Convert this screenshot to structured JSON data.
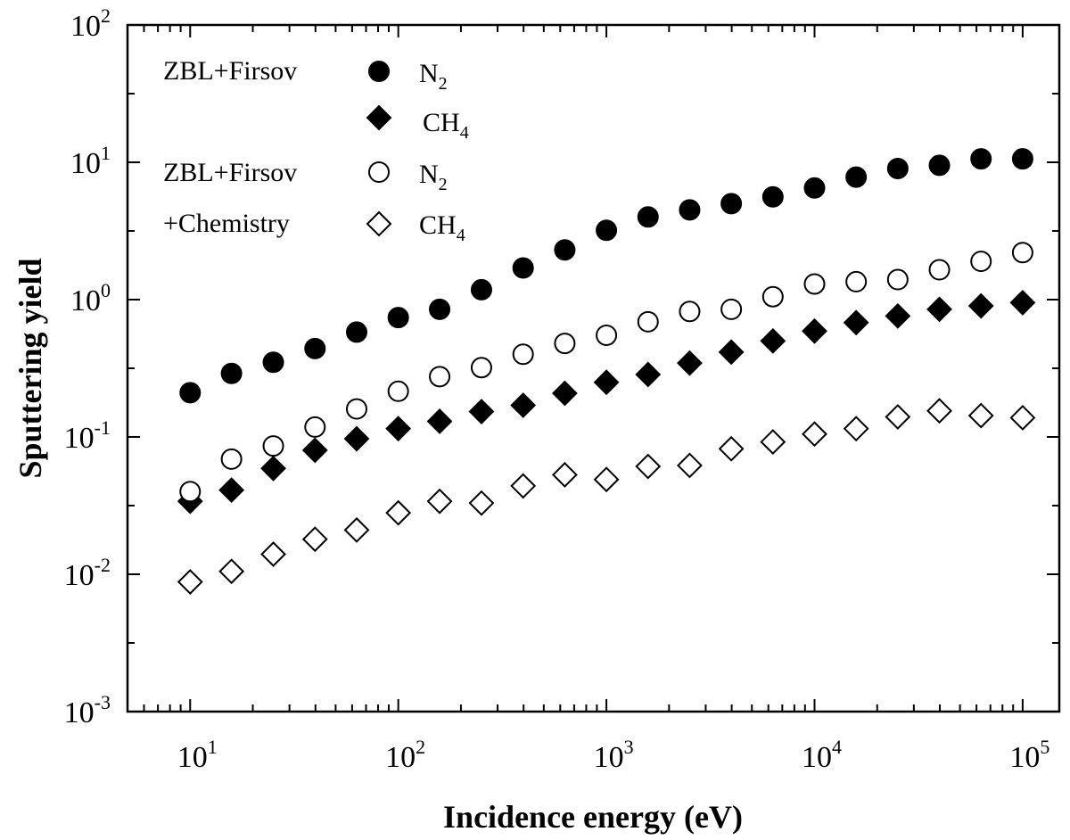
{
  "chart_data": {
    "type": "scatter",
    "title": "",
    "xlabel": "Incidence energy (eV)",
    "ylabel": "Sputtering yield",
    "xscale": "log",
    "yscale": "log",
    "xlim": [
      5,
      150000
    ],
    "ylim": [
      0.001,
      100
    ],
    "x_ticks": [
      {
        "base": "10",
        "exp": "1"
      },
      {
        "base": "10",
        "exp": "2"
      },
      {
        "base": "10",
        "exp": "3"
      },
      {
        "base": "10",
        "exp": "4"
      },
      {
        "base": "10",
        "exp": "5"
      }
    ],
    "y_ticks": [
      {
        "base": "10",
        "exp": "-3"
      },
      {
        "base": "10",
        "exp": "-2"
      },
      {
        "base": "10",
        "exp": "-1"
      },
      {
        "base": "10",
        "exp": "0"
      },
      {
        "base": "10",
        "exp": "1"
      },
      {
        "base": "10",
        "exp": "2"
      }
    ],
    "legend": {
      "placement": "top-left",
      "groups": [
        {
          "label": "ZBL+Firsov",
          "label_line2": ""
        },
        {
          "label": "ZBL+Firsov",
          "label_line2": "+Chemistry"
        }
      ],
      "entries": [
        {
          "main": "N",
          "sub": "2"
        },
        {
          "main": "CH",
          "sub": "4"
        },
        {
          "main": "N",
          "sub": "2"
        },
        {
          "main": "CH",
          "sub": "4"
        }
      ]
    },
    "x": [
      10,
      15.8,
      25.1,
      39.8,
      63.1,
      100,
      158,
      251,
      398,
      631,
      1000,
      1585,
      2512,
      3981,
      6310,
      10000,
      15849,
      25119,
      39811,
      63096,
      100000
    ],
    "series": [
      {
        "name": "ZBL+Firsov N2",
        "marker": "circle-filled",
        "values": [
          0.21,
          0.29,
          0.35,
          0.44,
          0.58,
          0.74,
          0.85,
          1.18,
          1.7,
          2.3,
          3.2,
          4.0,
          4.5,
          5.0,
          5.6,
          6.5,
          7.8,
          9.0,
          9.5,
          10.6,
          10.6
        ]
      },
      {
        "name": "ZBL+Firsov CH4",
        "marker": "diamond-filled",
        "values": [
          0.034,
          0.041,
          0.059,
          0.08,
          0.097,
          0.115,
          0.13,
          0.153,
          0.17,
          0.208,
          0.25,
          0.285,
          0.345,
          0.415,
          0.5,
          0.59,
          0.68,
          0.76,
          0.85,
          0.9,
          0.95
        ]
      },
      {
        "name": "ZBL+Firsov+Chemistry N2",
        "marker": "circle-open",
        "values": [
          0.04,
          0.069,
          0.086,
          0.118,
          0.16,
          0.215,
          0.275,
          0.32,
          0.4,
          0.48,
          0.55,
          0.69,
          0.82,
          0.85,
          1.05,
          1.3,
          1.35,
          1.4,
          1.65,
          1.9,
          2.2
        ]
      },
      {
        "name": "ZBL+Firsov+Chemistry CH4",
        "marker": "diamond-open",
        "values": [
          0.0088,
          0.0105,
          0.014,
          0.018,
          0.021,
          0.028,
          0.034,
          0.033,
          0.044,
          0.053,
          0.049,
          0.061,
          0.062,
          0.082,
          0.092,
          0.105,
          0.115,
          0.14,
          0.155,
          0.143,
          0.138
        ]
      }
    ],
    "grid": false
  }
}
